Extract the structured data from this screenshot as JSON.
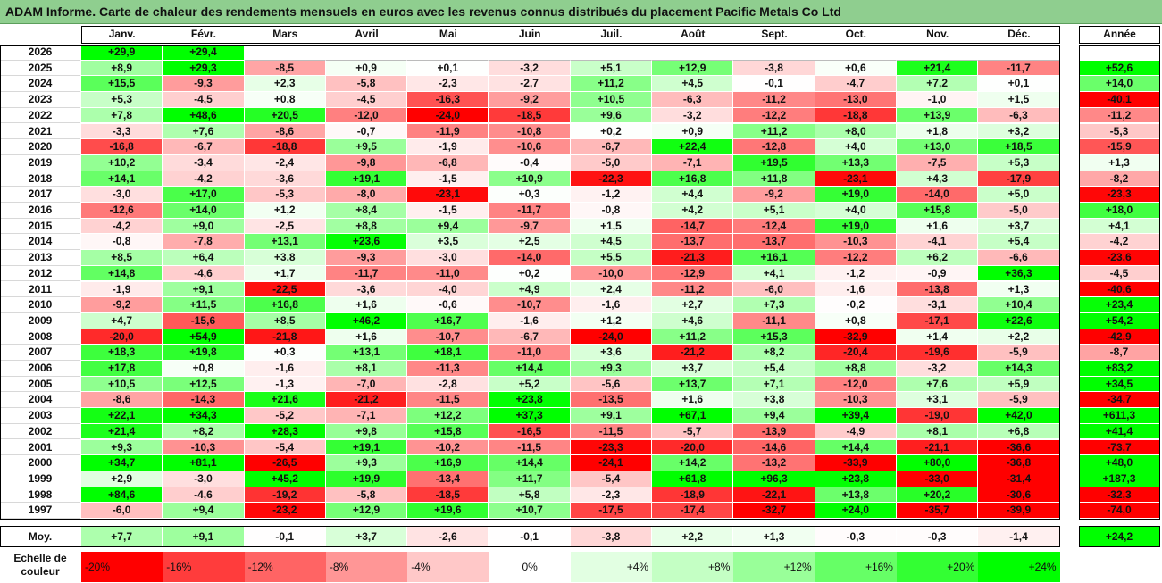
{
  "title": "ADAM Informe. Carte de chaleur des rendements mensuels en euros avec les revenus connus distribués du placement Pacific Metals Co Ltd",
  "chart_data": {
    "type": "heatmap",
    "months": [
      "Janv.",
      "Févr.",
      "Mars",
      "Avril",
      "Mai",
      "Juin",
      "Juil.",
      "Août",
      "Sept.",
      "Oct.",
      "Nov.",
      "Déc."
    ],
    "year_header": "Année",
    "rows": [
      {
        "year": "2026",
        "values": [
          29.9,
          29.4,
          null,
          null,
          null,
          null,
          null,
          null,
          null,
          null,
          null,
          null
        ],
        "annual": null
      },
      {
        "year": "2025",
        "values": [
          8.9,
          29.3,
          -8.5,
          0.9,
          0.1,
          -3.2,
          5.1,
          12.9,
          -3.8,
          0.6,
          21.4,
          -11.7
        ],
        "annual": 52.6
      },
      {
        "year": "2024",
        "values": [
          15.5,
          -9.3,
          2.3,
          -5.8,
          -2.3,
          -2.7,
          11.2,
          4.5,
          -0.1,
          -4.7,
          7.2,
          0.1
        ],
        "annual": 14.0
      },
      {
        "year": "2023",
        "values": [
          5.3,
          -4.5,
          0.8,
          -4.5,
          -16.3,
          -9.2,
          10.5,
          -6.3,
          -11.2,
          -13.0,
          -1.0,
          1.5
        ],
        "annual": -40.1
      },
      {
        "year": "2022",
        "values": [
          7.8,
          48.6,
          20.5,
          -12.0,
          -24.0,
          -18.5,
          9.6,
          -3.2,
          -12.2,
          -18.8,
          13.9,
          -6.3
        ],
        "annual": -11.2
      },
      {
        "year": "2021",
        "values": [
          -3.3,
          7.6,
          -8.6,
          -0.7,
          -11.9,
          -10.8,
          0.2,
          0.9,
          11.2,
          8.0,
          1.8,
          3.2
        ],
        "annual": -5.3
      },
      {
        "year": "2020",
        "values": [
          -16.8,
          -6.7,
          -18.8,
          9.5,
          -1.9,
          -10.6,
          -6.7,
          22.4,
          -12.8,
          4.0,
          13.0,
          18.5
        ],
        "annual": -15.9
      },
      {
        "year": "2019",
        "values": [
          10.2,
          -3.4,
          -2.4,
          -9.8,
          -6.8,
          -0.4,
          -5.0,
          -7.1,
          19.5,
          13.3,
          -7.5,
          5.3
        ],
        "annual": 1.3
      },
      {
        "year": "2018",
        "values": [
          14.1,
          -4.2,
          -3.6,
          19.1,
          -1.5,
          10.9,
          -22.3,
          16.8,
          11.8,
          -23.1,
          4.3,
          -17.9
        ],
        "annual": -8.2
      },
      {
        "year": "2017",
        "values": [
          -3.0,
          17.0,
          -5.3,
          -8.0,
          -23.1,
          0.3,
          -1.2,
          4.4,
          -9.2,
          19.0,
          -14.0,
          5.0
        ],
        "annual": -23.3
      },
      {
        "year": "2016",
        "values": [
          -12.6,
          14.0,
          1.2,
          8.4,
          -1.5,
          -11.7,
          -0.8,
          4.2,
          5.1,
          4.0,
          15.8,
          -5.0
        ],
        "annual": 18.0
      },
      {
        "year": "2015",
        "values": [
          -4.2,
          9.0,
          -2.5,
          8.8,
          9.4,
          -9.7,
          1.5,
          -14.7,
          -12.4,
          19.0,
          1.6,
          3.7
        ],
        "annual": 4.1
      },
      {
        "year": "2014",
        "values": [
          -0.8,
          -7.8,
          13.1,
          23.6,
          3.5,
          2.5,
          4.5,
          -13.7,
          -13.7,
          -10.3,
          -4.1,
          5.4
        ],
        "annual": -4.2
      },
      {
        "year": "2013",
        "values": [
          8.5,
          6.4,
          3.8,
          -9.3,
          -3.0,
          -14.0,
          5.5,
          -21.3,
          16.1,
          -12.2,
          6.2,
          -6.6
        ],
        "annual": -23.6
      },
      {
        "year": "2012",
        "values": [
          14.8,
          -4.6,
          1.7,
          -11.7,
          -11.0,
          0.2,
          -10.0,
          -12.9,
          4.1,
          -1.2,
          -0.9,
          36.3
        ],
        "annual": -4.5
      },
      {
        "year": "2011",
        "values": [
          -1.9,
          9.1,
          -22.5,
          -3.6,
          -4.0,
          4.9,
          2.4,
          -11.2,
          -6.0,
          -1.6,
          -13.8,
          1.3
        ],
        "annual": -40.6
      },
      {
        "year": "2010",
        "values": [
          -9.2,
          11.5,
          16.8,
          1.6,
          -0.6,
          -10.7,
          -1.6,
          2.7,
          7.3,
          -0.2,
          -3.1,
          10.4
        ],
        "annual": 23.4
      },
      {
        "year": "2009",
        "values": [
          4.7,
          -15.6,
          8.5,
          46.2,
          16.7,
          -1.6,
          1.2,
          4.6,
          -11.1,
          0.8,
          -17.1,
          22.6
        ],
        "annual": 54.2
      },
      {
        "year": "2008",
        "values": [
          -20.0,
          54.9,
          -21.8,
          1.6,
          -10.7,
          -6.7,
          -24.0,
          11.2,
          15.3,
          -32.9,
          1.4,
          2.2
        ],
        "annual": -42.9
      },
      {
        "year": "2007",
        "values": [
          18.3,
          19.8,
          0.3,
          13.1,
          18.1,
          -11.0,
          3.6,
          -21.2,
          8.2,
          -20.4,
          -19.6,
          -5.9
        ],
        "annual": -8.7
      },
      {
        "year": "2006",
        "values": [
          17.8,
          0.8,
          -1.6,
          8.1,
          -11.3,
          14.4,
          9.3,
          3.7,
          5.4,
          8.8,
          -3.2,
          14.3
        ],
        "annual": 83.2
      },
      {
        "year": "2005",
        "values": [
          10.5,
          12.5,
          -1.3,
          -7.0,
          -2.8,
          5.2,
          -5.6,
          13.7,
          7.1,
          -12.0,
          7.6,
          5.9
        ],
        "annual": 34.5
      },
      {
        "year": "2004",
        "values": [
          -8.6,
          -14.3,
          21.6,
          -21.2,
          -11.5,
          23.8,
          -13.5,
          1.6,
          3.8,
          -10.3,
          3.1,
          -5.9
        ],
        "annual": -34.7
      },
      {
        "year": "2003",
        "values": [
          22.1,
          34.3,
          -5.2,
          -7.1,
          12.2,
          37.3,
          9.1,
          67.1,
          9.4,
          39.4,
          -19.0,
          42.0
        ],
        "annual": 611.3
      },
      {
        "year": "2002",
        "values": [
          21.4,
          8.2,
          28.3,
          9.8,
          15.8,
          -16.5,
          -11.5,
          -5.7,
          -13.9,
          -4.9,
          8.1,
          6.8
        ],
        "annual": 41.4
      },
      {
        "year": "2001",
        "values": [
          9.3,
          -10.3,
          -5.4,
          19.1,
          -10.2,
          -11.5,
          -23.3,
          -20.0,
          -14.6,
          14.4,
          -21.1,
          -36.6
        ],
        "annual": -73.7
      },
      {
        "year": "2000",
        "values": [
          34.7,
          81.1,
          -26.5,
          9.3,
          16.9,
          14.4,
          -24.1,
          14.2,
          -13.2,
          -33.9,
          80.0,
          -36.8
        ],
        "annual": 48.0
      },
      {
        "year": "1999",
        "values": [
          2.9,
          -3.0,
          45.2,
          19.9,
          -13.4,
          11.7,
          -5.4,
          61.8,
          96.3,
          23.8,
          -33.0,
          -31.4
        ],
        "annual": 187.3
      },
      {
        "year": "1998",
        "values": [
          84.6,
          -4.6,
          -19.2,
          -5.8,
          -18.5,
          5.8,
          -2.3,
          -18.9,
          -22.1,
          13.8,
          20.2,
          -30.6
        ],
        "annual": -32.3
      },
      {
        "year": "1997",
        "values": [
          -6.0,
          9.4,
          -23.2,
          12.9,
          19.6,
          10.7,
          -17.5,
          -17.4,
          -32.7,
          24.0,
          -35.7,
          -39.9
        ],
        "annual": -74.0
      }
    ],
    "average_label": "Moy.",
    "averages": [
      7.7,
      9.1,
      -0.1,
      3.7,
      -2.6,
      -0.1,
      -3.8,
      2.2,
      1.3,
      -0.3,
      -0.3,
      -1.4
    ],
    "average_annual": 24.2,
    "scale_label": "Echelle de couleur",
    "scale_steps": [
      "-20%",
      "-16%",
      "-12%",
      "-8%",
      "-4%",
      "0%",
      "+4%",
      "+8%",
      "+12%",
      "+16%",
      "+20%",
      "+24%"
    ],
    "scale_colors": [
      "#ff0000",
      "#ff3c3c",
      "#ff6464",
      "#ff9696",
      "#ffc8c8",
      "#ffffff",
      "#e2ffe2",
      "#c4ffc4",
      "#99ff99",
      "#66ff66",
      "#33ff33",
      "#00ff00"
    ]
  }
}
